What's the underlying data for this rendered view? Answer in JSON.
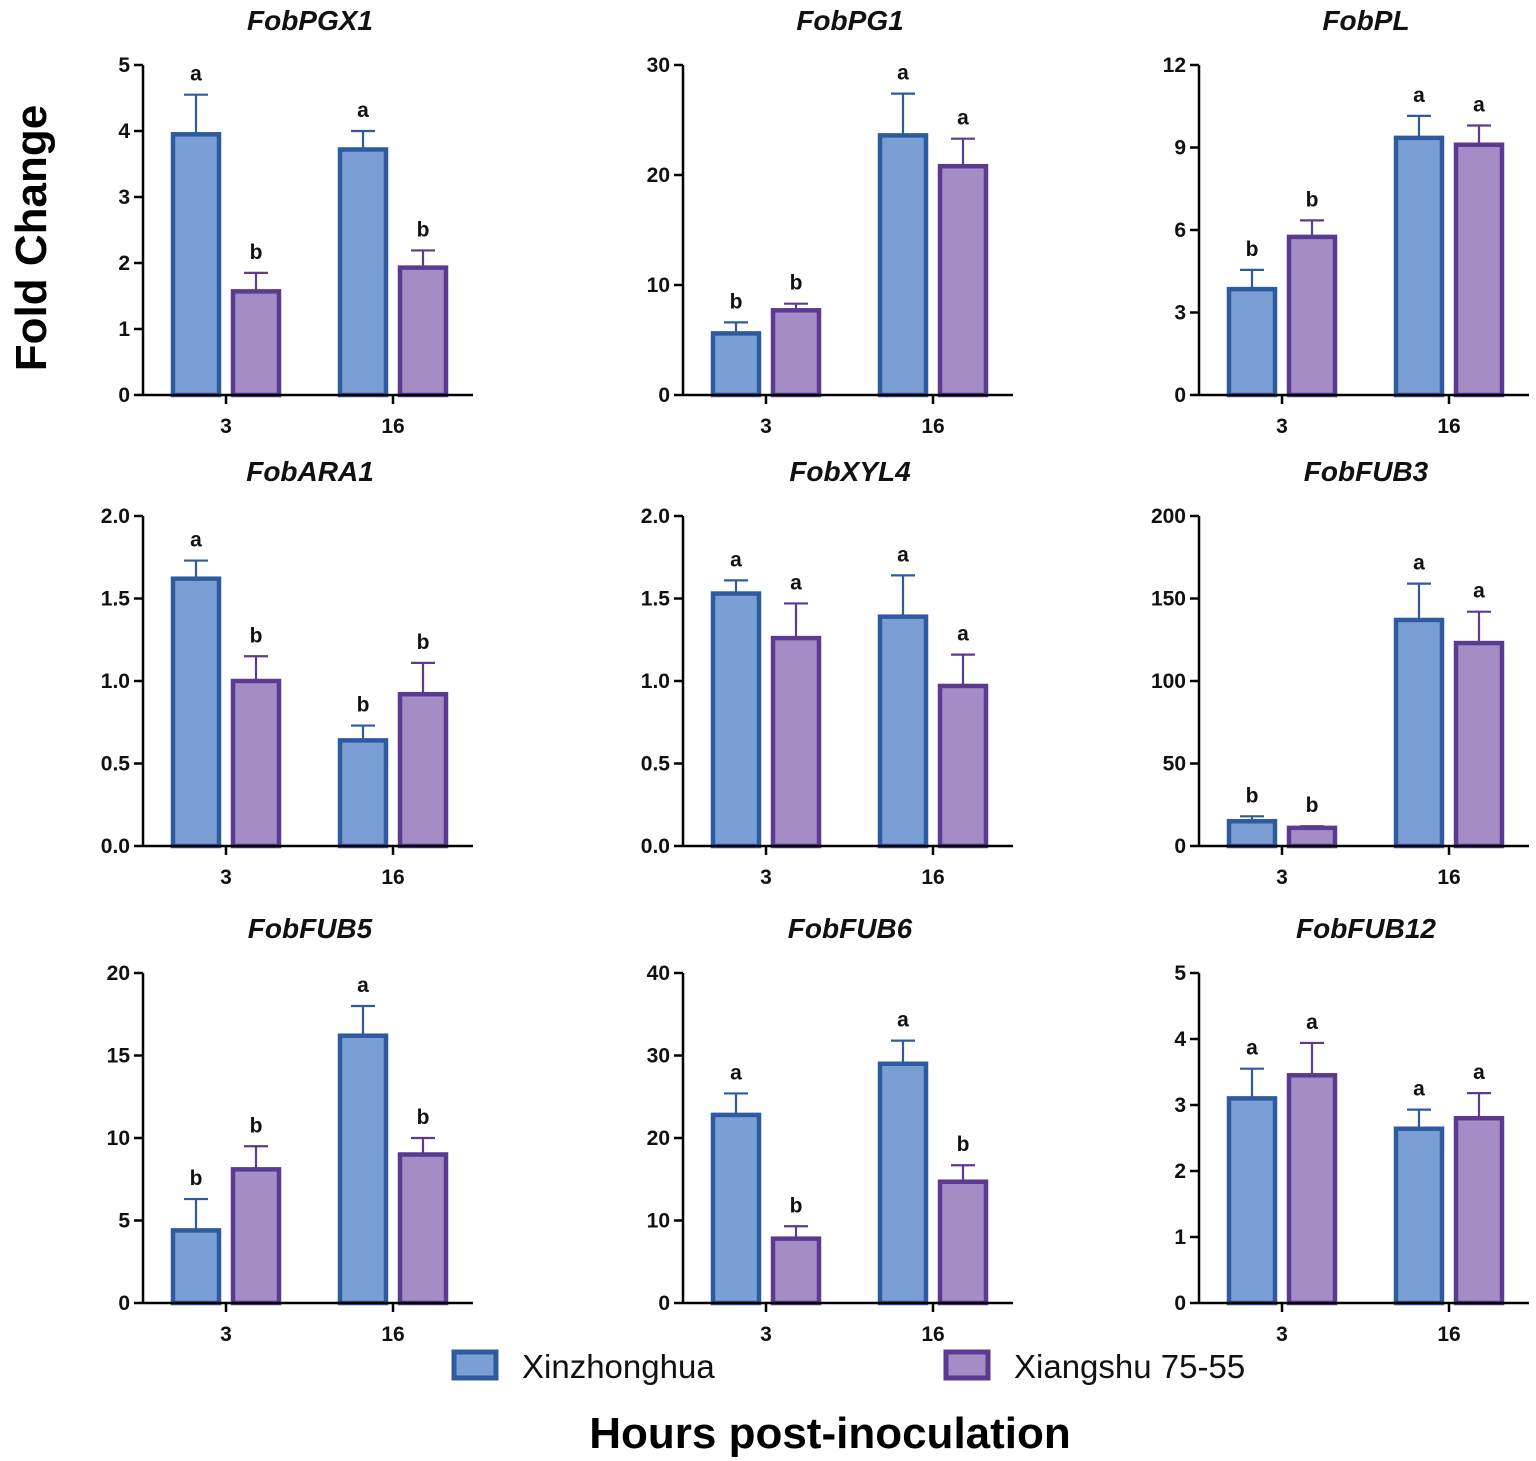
{
  "chart_data": {
    "type": "bar",
    "ylabel": "Fold Change",
    "xlabel": "Hours post-inoculation",
    "categories": [
      "3",
      "16"
    ],
    "legend": {
      "placement": "bottom",
      "entries": [
        {
          "name": "Xinzhonghua",
          "fill": "#7b9fd4",
          "stroke": "#2e5aa0"
        },
        {
          "name": "Xiangshu 75-55",
          "fill": "#a48cc4",
          "stroke": "#5b3a92"
        }
      ]
    },
    "panels": [
      {
        "title": "FobPGX1",
        "ylim": [
          0,
          5
        ],
        "yticks": [
          "0",
          "1",
          "2",
          "3",
          "4",
          "5"
        ],
        "series": [
          {
            "name": "Xinzhonghua",
            "values": [
              3.95,
              3.72
            ],
            "errors": [
              0.6,
              0.28
            ],
            "letters": [
              "a",
              "a"
            ]
          },
          {
            "name": "Xiangshu 75-55",
            "values": [
              1.57,
              1.93
            ],
            "errors": [
              0.28,
              0.26
            ],
            "letters": [
              "b",
              "b"
            ]
          }
        ]
      },
      {
        "title": "FobPG1",
        "ylim": [
          0,
          30
        ],
        "yticks": [
          "0",
          "10",
          "20",
          "30"
        ],
        "series": [
          {
            "name": "Xinzhonghua",
            "values": [
              5.6,
              23.6
            ],
            "errors": [
              1.0,
              3.8
            ],
            "letters": [
              "b",
              "a"
            ]
          },
          {
            "name": "Xiangshu 75-55",
            "values": [
              7.7,
              20.8
            ],
            "errors": [
              0.6,
              2.5
            ],
            "letters": [
              "b",
              "a"
            ]
          }
        ]
      },
      {
        "title": "FobPL",
        "ylim": [
          0,
          12
        ],
        "yticks": [
          "0",
          "3",
          "6",
          "9",
          "12"
        ],
        "series": [
          {
            "name": "Xinzhonghua",
            "values": [
              3.85,
              9.35
            ],
            "errors": [
              0.7,
              0.8
            ],
            "letters": [
              "b",
              "a"
            ]
          },
          {
            "name": "Xiangshu 75-55",
            "values": [
              5.75,
              9.1
            ],
            "errors": [
              0.6,
              0.7
            ],
            "letters": [
              "b",
              "a"
            ]
          }
        ]
      },
      {
        "title": "FobARA1",
        "ylim": [
          0,
          2
        ],
        "yticks": [
          "0.0",
          "0.5",
          "1.0",
          "1.5",
          "2.0"
        ],
        "series": [
          {
            "name": "Xinzhonghua",
            "values": [
              1.62,
              0.64
            ],
            "errors": [
              0.11,
              0.09
            ],
            "letters": [
              "a",
              "b"
            ]
          },
          {
            "name": "Xiangshu 75-55",
            "values": [
              1.0,
              0.92
            ],
            "errors": [
              0.15,
              0.19
            ],
            "letters": [
              "b",
              "b"
            ]
          }
        ]
      },
      {
        "title": "FobXYL4",
        "ylim": [
          0,
          2
        ],
        "yticks": [
          "0.0",
          "0.5",
          "1.0",
          "1.5",
          "2.0"
        ],
        "series": [
          {
            "name": "Xinzhonghua",
            "values": [
              1.53,
              1.39
            ],
            "errors": [
              0.08,
              0.25
            ],
            "letters": [
              "a",
              "a"
            ]
          },
          {
            "name": "Xiangshu 75-55",
            "values": [
              1.26,
              0.97
            ],
            "errors": [
              0.21,
              0.19
            ],
            "letters": [
              "a",
              "a"
            ]
          }
        ]
      },
      {
        "title": "FobFUB3",
        "ylim": [
          0,
          200
        ],
        "yticks": [
          "0",
          "50",
          "100",
          "150",
          "200"
        ],
        "series": [
          {
            "name": "Xinzhonghua",
            "values": [
              15,
              137
            ],
            "errors": [
              3,
              22
            ],
            "letters": [
              "b",
              "a"
            ]
          },
          {
            "name": "Xiangshu 75-55",
            "values": [
              11,
              123
            ],
            "errors": [
              1,
              19
            ],
            "letters": [
              "b",
              "a"
            ]
          }
        ]
      },
      {
        "title": "FobFUB5",
        "ylim": [
          0,
          20
        ],
        "yticks": [
          "0",
          "5",
          "10",
          "15",
          "20"
        ],
        "series": [
          {
            "name": "Xinzhonghua",
            "values": [
              4.4,
              16.2
            ],
            "errors": [
              1.9,
              1.8
            ],
            "letters": [
              "b",
              "a"
            ]
          },
          {
            "name": "Xiangshu 75-55",
            "values": [
              8.1,
              9.0
            ],
            "errors": [
              1.4,
              1.0
            ],
            "letters": [
              "b",
              "b"
            ]
          }
        ]
      },
      {
        "title": "FobFUB6",
        "ylim": [
          0,
          40
        ],
        "yticks": [
          "0",
          "10",
          "20",
          "30",
          "40"
        ],
        "series": [
          {
            "name": "Xinzhonghua",
            "values": [
              22.8,
              29.0
            ],
            "errors": [
              2.6,
              2.8
            ],
            "letters": [
              "a",
              "a"
            ]
          },
          {
            "name": "Xiangshu 75-55",
            "values": [
              7.8,
              14.7
            ],
            "errors": [
              1.5,
              2.0
            ],
            "letters": [
              "b",
              "b"
            ]
          }
        ]
      },
      {
        "title": "FobFUB12",
        "ylim": [
          0,
          5
        ],
        "yticks": [
          "0",
          "1",
          "2",
          "3",
          "4",
          "5"
        ],
        "series": [
          {
            "name": "Xinzhonghua",
            "values": [
              3.1,
              2.64
            ],
            "errors": [
              0.45,
              0.29
            ],
            "letters": [
              "a",
              "a"
            ]
          },
          {
            "name": "Xiangshu 75-55",
            "values": [
              3.45,
              2.8
            ],
            "errors": [
              0.49,
              0.38
            ],
            "letters": [
              "a",
              "a"
            ]
          }
        ]
      }
    ]
  }
}
